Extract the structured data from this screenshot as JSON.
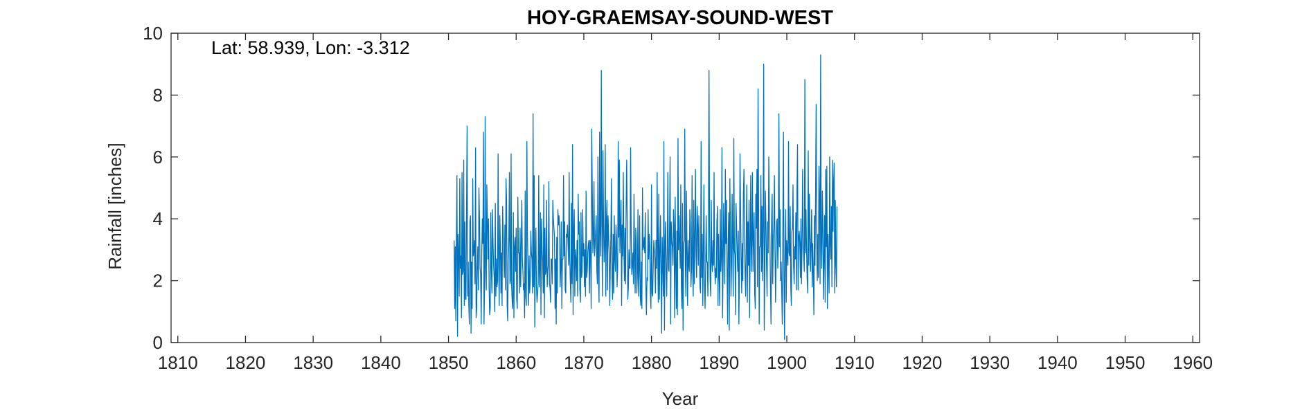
{
  "chart_data": {
    "type": "line",
    "title": "HOY-GRAEMSAY-SOUND-WEST",
    "annotation": "Lat: 58.939, Lon: -3.312",
    "xlabel": "Year",
    "ylabel": "Rainfall [inches]",
    "xlim": [
      1809,
      1961
    ],
    "ylim": [
      0,
      10
    ],
    "xticks": [
      1810,
      1820,
      1830,
      1840,
      1850,
      1860,
      1870,
      1880,
      1890,
      1900,
      1910,
      1920,
      1930,
      1940,
      1950,
      1960
    ],
    "yticks": [
      0,
      2,
      4,
      6,
      8,
      10
    ],
    "grid": false,
    "box": true,
    "series": [
      {
        "color": "#0072BD",
        "x_start": 1850.8333,
        "x_step_months": 1,
        "values": [
          3.3,
          1.1,
          3.1,
          0.7,
          3.4,
          5.4,
          0.2,
          3.5,
          2.9,
          1.5,
          5.3,
          2.4,
          2.8,
          0.8,
          5.5,
          2.2,
          2.3,
          5.9,
          1.2,
          3.9,
          1.4,
          1.4,
          4.4,
          7.0,
          1.5,
          2.6,
          1.2,
          0.6,
          3.9,
          4.1,
          0.3,
          2.6,
          1.1,
          5.3,
          2.8,
          3.0,
          3.3,
          1.9,
          6.3,
          0.8,
          1.1,
          2.5,
          3.1,
          1.7,
          5.0,
          4.0,
          2.4,
          2.2,
          0.6,
          2.9,
          4.0,
          3.2,
          6.8,
          0.6,
          1.8,
          7.3,
          2.4,
          1.7,
          5.1,
          4.0,
          2.7,
          4.0,
          1.8,
          0.9,
          1.1,
          4.2,
          2.4,
          1.6,
          4.3,
          3.2,
          2.5,
          2.1,
          1.0,
          4.5,
          1.5,
          2.7,
          1.8,
          2.0,
          6.1,
          2.5,
          1.2,
          4.1,
          3.2,
          1.6,
          2.9,
          1.2,
          4.4,
          3.5,
          2.8,
          2.1,
          3.8,
          1.7,
          5.3,
          4.6,
          1.2,
          0.7,
          2.6,
          3.3,
          5.5,
          1.9,
          2.0,
          6.1,
          1.8,
          1.3,
          1.1,
          4.2,
          0.8,
          3.1,
          3.4,
          2.3,
          3.7,
          1.4,
          1.1,
          4.7,
          2.9,
          2.9,
          1.6,
          3.7,
          1.8,
          3.1,
          4.6,
          2.7,
          2.3,
          1.7,
          1.9,
          0.8,
          4.9,
          1.5,
          1.2,
          6.5,
          3.5,
          2.4,
          1.2,
          2.8,
          1.6,
          2.0,
          3.6,
          2.9,
          2.7,
          1.6,
          7.4,
          1.8,
          5.4,
          0.5,
          2.8,
          3.7,
          1.8,
          1.3,
          1.6,
          1.9,
          5.4,
          1.8,
          2.4,
          4.2,
          0.9,
          4.0,
          3.0,
          2.6,
          1.6,
          5.1,
          0.8,
          3.7,
          2.2,
          2.3,
          4.6,
          1.8,
          2.3,
          2.5,
          5.2,
          1.9,
          1.8,
          1.3,
          2.7,
          2.7,
          1.9,
          4.6,
          4.0,
          3.7,
          3.4,
          1.1,
          2.7,
          0.6,
          3.4,
          1.6,
          4.3,
          3.8,
          4.1,
          3.7,
          1.8,
          2.4,
          3.9,
          1.1,
          2.7,
          2.7,
          5.4,
          2.8,
          3.9,
          1.7,
          1.6,
          3.5,
          3.4,
          3.8,
          3.2,
          2.5,
          5.5,
          2.8,
          2.0,
          1.3,
          4.5,
          1.9,
          6.4,
          0.9,
          3.6,
          4.3,
          1.5,
          3.0,
          2.7,
          2.0,
          3.3,
          1.5,
          4.8,
          3.5,
          3.9,
          1.7,
          1.3,
          4.2,
          2.1,
          2.3,
          4.3,
          2.8,
          3.2,
          1.8,
          3.0,
          1.5,
          4.9,
          2.1,
          2.3,
          2.9,
          3.2,
          3.3,
          1.6,
          3.3,
          3.2,
          1.1,
          6.9,
          4.9,
          2.9,
          3.3,
          5.2,
          2.8,
          3.1,
          3.6,
          4.1,
          2.4,
          1.9,
          6.0,
          2.3,
          1.3,
          6.8,
          3.6,
          2.8,
          8.8,
          3.9,
          1.5,
          6.2,
          3.8,
          2.6,
          3.1,
          6.4,
          1.5,
          3.9,
          4.6,
          1.7,
          4.1,
          3.4,
          2.9,
          1.2,
          2.5,
          3.5,
          5.3,
          2.1,
          1.4,
          3.5,
          1.6,
          4.1,
          2.7,
          2.3,
          3.8,
          3.4,
          1.8,
          2.4,
          6.5,
          3.4,
          5.9,
          2.9,
          3.7,
          4.6,
          1.2,
          3.8,
          2.8,
          5.5,
          3.1,
          2.0,
          3.7,
          1.9,
          4.3,
          5.9,
          3.9,
          1.4,
          1.8,
          3.0,
          2.4,
          2.4,
          6.3,
          3.5,
          2.2,
          2.5,
          2.9,
          1.9,
          4.8,
          2.7,
          1.6,
          3.7,
          3.3,
          1.6,
          2.2,
          4.3,
          1.5,
          2.3,
          4.1,
          1.5,
          1.2,
          2.6,
          1.1,
          5.0,
          3.0,
          3.1,
          3.4,
          2.9,
          4.2,
          1.9,
          0.9,
          2.1,
          2.0,
          4.3,
          2.7,
          3.5,
          3.1,
          1.6,
          1.1,
          5.1,
          1.6,
          1.5,
          2.4,
          3.3,
          3.0,
          2.7,
          1.6,
          3.3,
          2.4,
          5.5,
          3.1,
          1.3,
          4.8,
          1.4,
          2.8,
          4.1,
          2.5,
          0.3,
          3.4,
          2.6,
          1.5,
          6.5,
          0.4,
          3.2,
          3.9,
          2.3,
          1.5,
          3.1,
          5.5,
          2.4,
          2.3,
          3.6,
          6.0,
          0.6,
          3.9,
          3.3,
          3.1,
          2.5,
          4.3,
          3.8,
          0.8,
          4.7,
          2.5,
          1.1,
          3.6,
          0.9,
          6.6,
          3.0,
          4.1,
          3.2,
          2.4,
          5.1,
          1.8,
          1.1,
          4.5,
          0.4,
          3.2,
          3.3,
          6.9,
          2.6,
          1.5,
          4.9,
          3.0,
          1.2,
          3.3,
          2.5,
          2.3,
          4.3,
          3.8,
          1.8,
          2.4,
          5.4,
          2.4,
          1.5,
          4.6,
          1.9,
          3.4,
          5.6,
          2.9,
          2.1,
          4.4,
          3.8,
          2.5,
          4.1,
          2.8,
          1.8,
          1.6,
          6.5,
          2.1,
          3.5,
          1.2,
          3.0,
          5.1,
          1.9,
          1.1,
          2.3,
          4.1,
          2.6,
          2.6,
          1.5,
          3.7,
          8.8,
          3.8,
          2.0,
          1.5,
          4.6,
          2.6,
          2.3,
          3.3,
          2.5,
          5.5,
          2.6,
          1.9,
          2.4,
          2.1,
          3.9,
          4.4,
          1.2,
          3.5,
          2.2,
          1.2,
          4.3,
          2.3,
          2.8,
          6.3,
          0.8,
          2.4,
          4.5,
          3.3,
          1.9,
          5.6,
          3.2,
          4.6,
          2.4,
          0.6,
          3.3,
          4.2,
          0.4,
          5.3,
          3.6,
          1.5,
          2.5,
          4.8,
          3.0,
          1.5,
          6.6,
          3.0,
          2.8,
          0.9,
          4.5,
          3.7,
          2.9,
          2.3,
          3.6,
          0.6,
          2.4,
          6.1,
          4.3,
          2.7,
          1.6,
          3.2,
          2.0,
          4.8,
          5.6,
          3.7,
          2.3,
          1.5,
          3.3,
          5.1,
          1.3,
          3.9,
          2.5,
          4.6,
          0.8,
          3.2,
          5.4,
          2.3,
          3.3,
          5.5,
          2.3,
          3.4,
          4.2,
          1.6,
          1.1,
          4.8,
          3.7,
          5.6,
          1.8,
          8.2,
          4.3,
          0.6,
          3.1,
          3.1,
          5.4,
          2.3,
          4.4,
          2.0,
          3.9,
          9.0,
          0.4,
          2.5,
          4.9,
          3.8,
          2.6,
          1.5,
          3.9,
          2.9,
          6.0,
          4.3,
          3.4,
          1.8,
          0.6,
          3.9,
          4.8,
          1.9,
          3.4,
          3.8,
          5.4,
          3.1,
          1.3,
          2.8,
          3.9,
          4.0,
          2.4,
          3.2,
          7.4,
          3.1,
          4.3,
          2.0,
          2.6,
          1.6,
          0.6,
          3.9,
          6.8,
          2.1,
          0.1,
          3.0,
          4.3,
          1.3,
          3.3,
          2.8,
          2.5,
          6.5,
          2.9,
          2.8,
          4.4,
          1.8,
          1.2,
          3.6,
          3.7,
          5.1,
          2.5,
          1.9,
          3.1,
          2.7,
          4.2,
          1.7,
          4.9,
          6.4,
          1.7,
          3.4,
          3.6,
          3.2,
          2.1,
          4.0,
          1.9,
          3.1,
          5.6,
          3.4,
          2.8,
          2.3,
          8.5,
          2.9,
          4.3,
          3.0,
          2.1,
          1.6,
          6.2,
          2.5,
          4.8,
          3.5,
          2.3,
          3.2,
          4.3,
          1.8,
          3.2,
          2.2,
          0.9,
          4.1,
          2.5,
          4.8,
          7.7,
          3.4,
          2.0,
          3.5,
          2.1,
          5.7,
          4.5,
          1.9,
          9.3,
          3.1,
          2.4,
          4.9,
          3.9,
          1.4,
          2.7,
          4.1,
          1.3,
          5.6,
          3.1,
          5.7,
          1.1,
          3.5,
          2.6,
          1.6,
          6.0,
          3.2,
          2.7,
          4.4,
          1.8,
          5.9,
          3.6,
          5.2,
          5.8,
          1.6,
          4.6,
          2.5,
          1.8,
          4.4
        ]
      }
    ]
  }
}
